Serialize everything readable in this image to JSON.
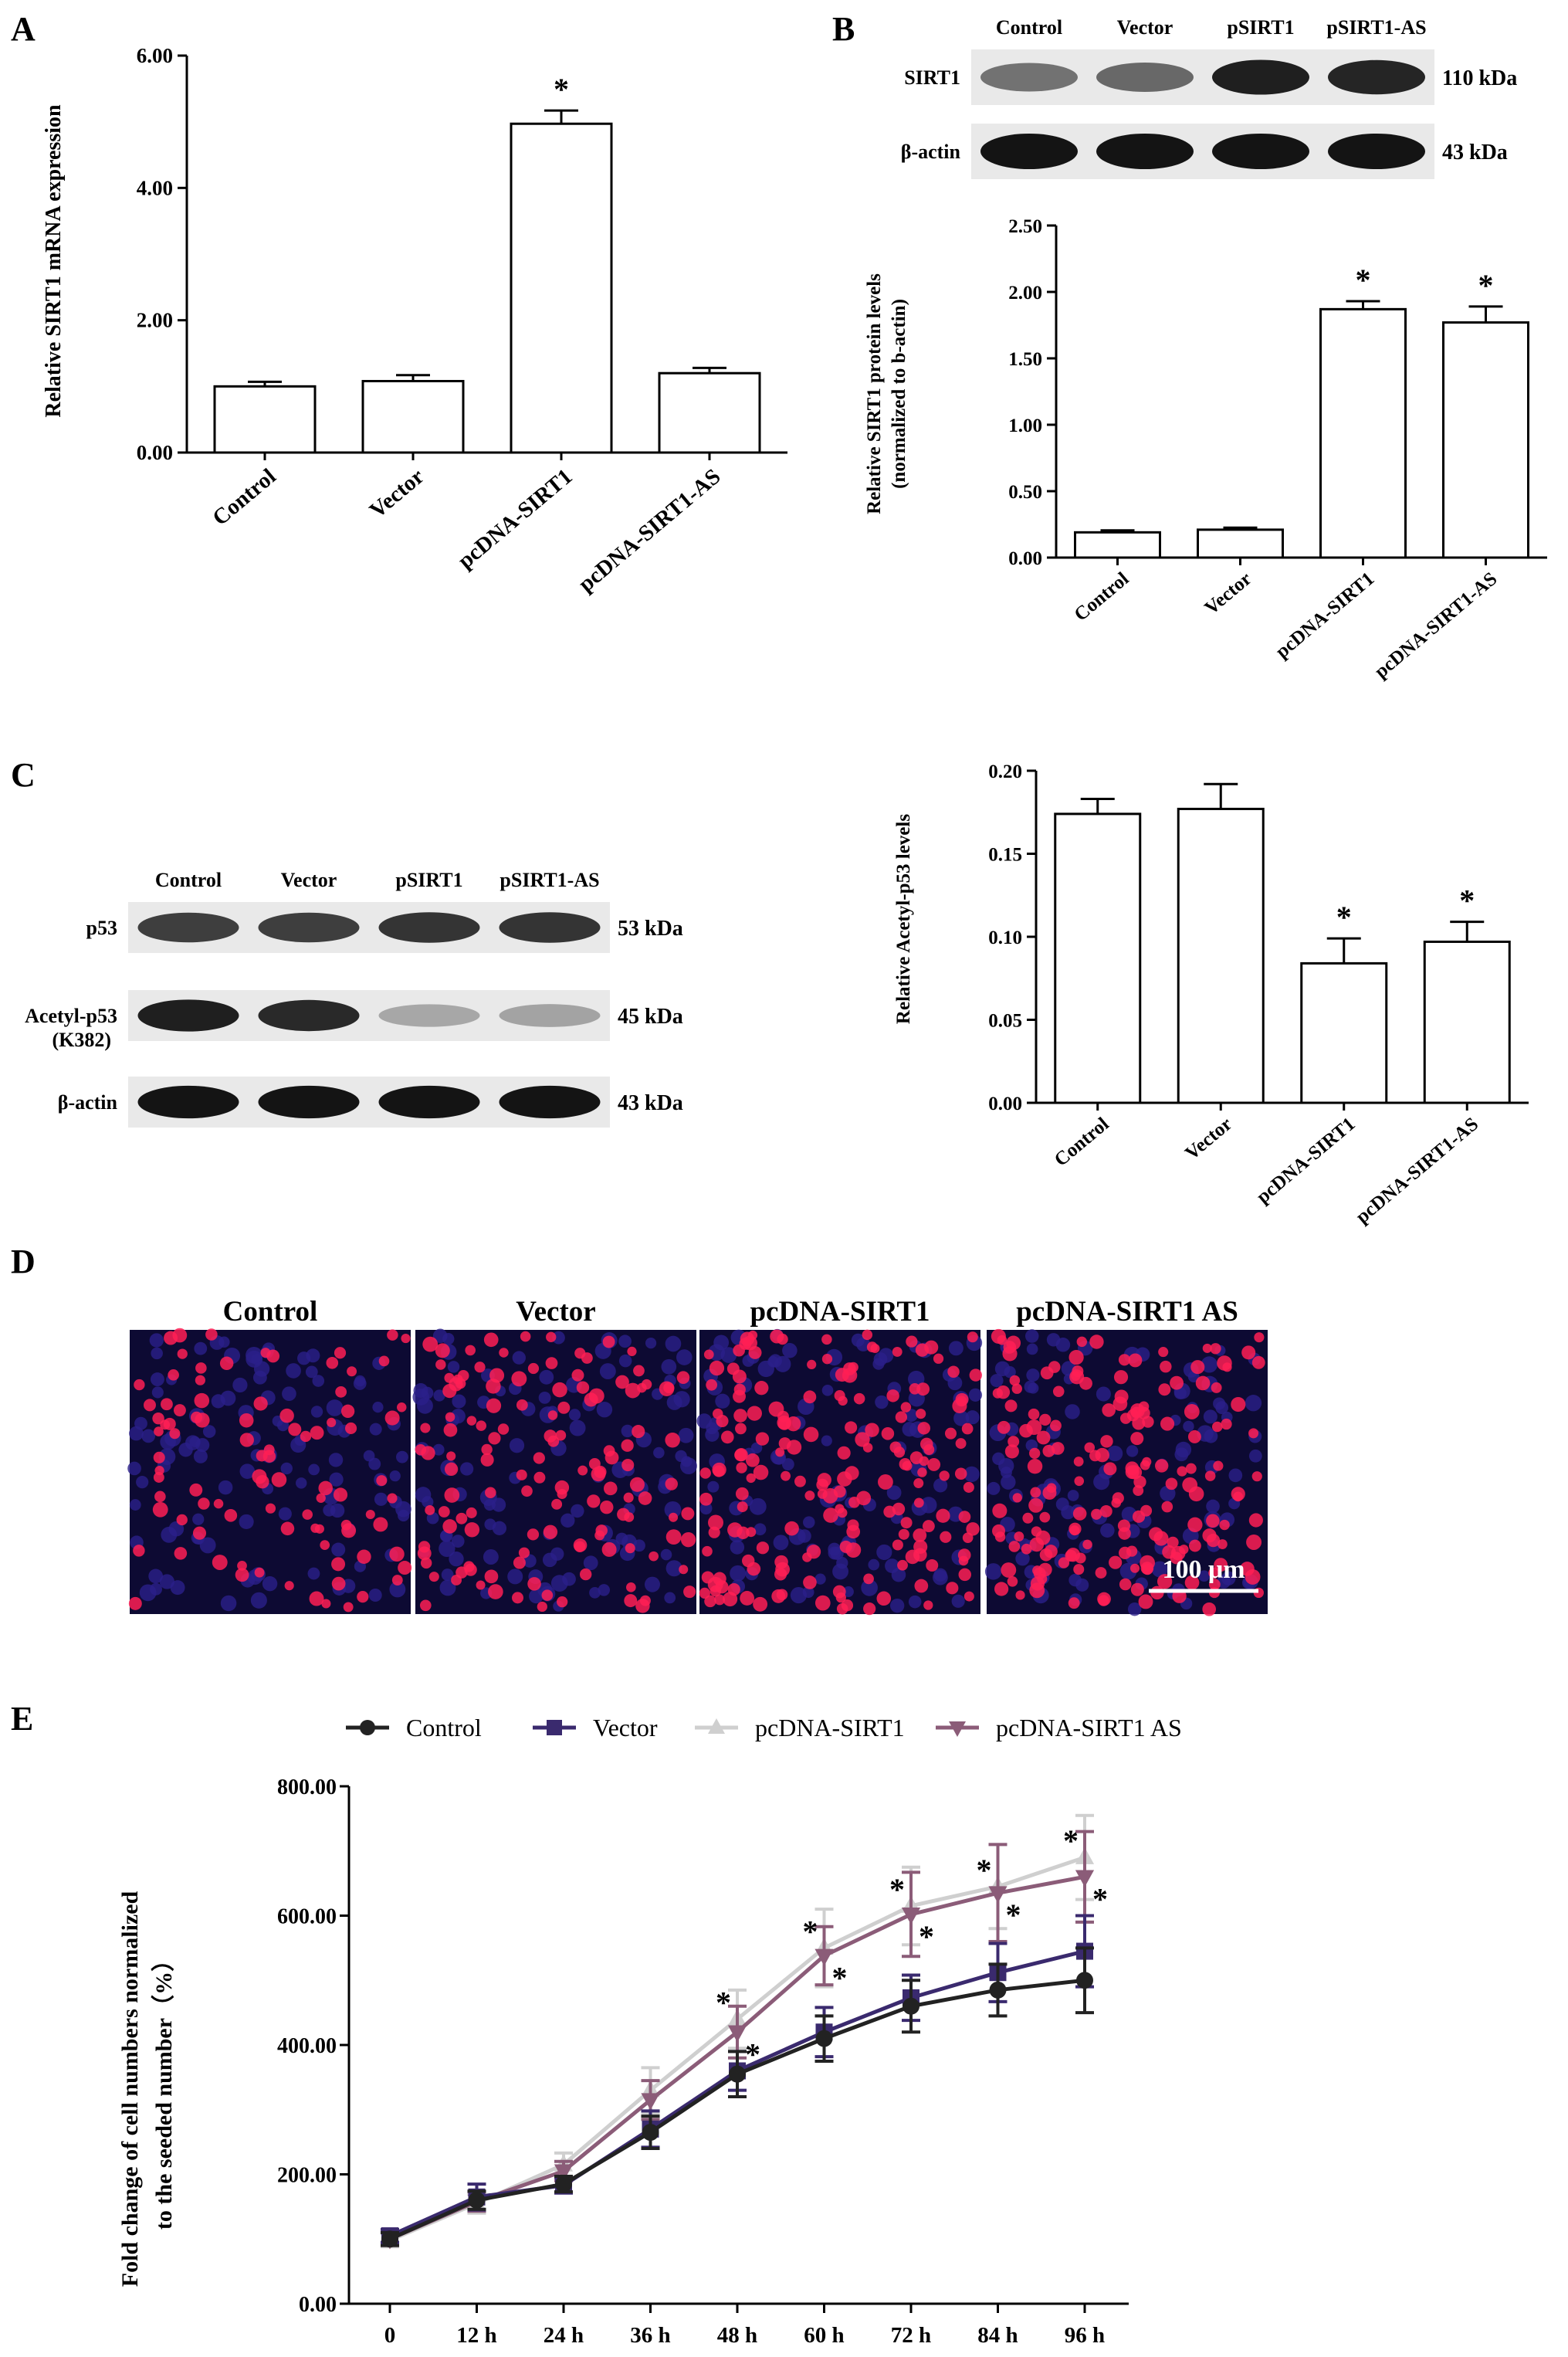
{
  "colors": {
    "control": "#222222",
    "vector": "#3a2a6e",
    "pcdna_sirt1": "#cfcfcf",
    "pcdna_sirt1_as": "#8b5c78",
    "bar_fill": "#ffffff",
    "stroke": "#000000"
  },
  "panels": {
    "A": "A",
    "B": "B",
    "C": "C",
    "D": "D",
    "E": "E"
  },
  "chart_data": [
    {
      "id": "A",
      "type": "bar",
      "categories": [
        "Control",
        "Vector",
        "pcDNA-SIRT1",
        "pcDNA-SIRT1-AS"
      ],
      "values": [
        1.0,
        1.08,
        4.97,
        1.2
      ],
      "errors": [
        0.07,
        0.09,
        0.2,
        0.08
      ],
      "significance": [
        "",
        "",
        "*",
        ""
      ],
      "ylabel": "Relative SIRT1 mRNA expression",
      "ylim": [
        0,
        6
      ],
      "yticks": [
        "0.00",
        "2.00",
        "4.00",
        "6.00"
      ],
      "ytick_values": [
        0,
        2,
        4,
        6
      ]
    },
    {
      "id": "B",
      "type": "bar",
      "categories": [
        "Control",
        "Vector",
        "pcDNA-SIRT1",
        "pcDNA-SIRT1-AS"
      ],
      "values": [
        0.19,
        0.21,
        1.87,
        1.77
      ],
      "errors": [
        0.015,
        0.015,
        0.06,
        0.12
      ],
      "significance": [
        "",
        "",
        "*",
        "*"
      ],
      "ylabel": "Relative SIRT1 protein levels",
      "ylabel2": "(normalized to b-actin)",
      "ylim": [
        0,
        2.5
      ],
      "yticks": [
        "0.00",
        "0.50",
        "1.00",
        "1.50",
        "2.00",
        "2.50"
      ],
      "ytick_values": [
        0,
        0.5,
        1,
        1.5,
        2,
        2.5
      ]
    },
    {
      "id": "C",
      "type": "bar",
      "categories": [
        "Control",
        "Vector",
        "pcDNA-SIRT1",
        "pcDNA-SIRT1-AS"
      ],
      "values": [
        0.174,
        0.177,
        0.084,
        0.097
      ],
      "errors": [
        0.009,
        0.015,
        0.015,
        0.012
      ],
      "significance": [
        "",
        "",
        "*",
        "*"
      ],
      "ylabel": "Relative Acetyl-p53 levels",
      "ylim": [
        0,
        0.2
      ],
      "yticks": [
        "0.00",
        "0.05",
        "0.10",
        "0.15",
        "0.20"
      ],
      "ytick_values": [
        0,
        0.05,
        0.1,
        0.15,
        0.2
      ]
    },
    {
      "id": "E",
      "type": "line",
      "x": [
        "0",
        "12 h",
        "24 h",
        "36 h",
        "48 h",
        "60 h",
        "72 h",
        "84 h",
        "96 h"
      ],
      "ylabel": "Fold change of cell numbers normalized",
      "ylabel2": "to the seeded number（%）",
      "ylim": [
        0,
        800
      ],
      "yticks": [
        "0.00",
        "200.00",
        "400.00",
        "600.00",
        "800.00"
      ],
      "ytick_values": [
        0,
        200,
        400,
        600,
        800
      ],
      "legend": "top",
      "series": [
        {
          "name": "Control",
          "marker": "circle",
          "colorKey": "control",
          "values": [
            100,
            160,
            185,
            265,
            355,
            410,
            460,
            485,
            500
          ],
          "errors": [
            10,
            14,
            12,
            25,
            35,
            35,
            40,
            40,
            50
          ]
        },
        {
          "name": "Vector",
          "marker": "square",
          "colorKey": "vector",
          "values": [
            105,
            165,
            183,
            270,
            360,
            420,
            473,
            512,
            545
          ],
          "errors": [
            10,
            20,
            12,
            28,
            30,
            38,
            35,
            45,
            55
          ]
        },
        {
          "name": "pcDNA-SIRT1",
          "marker": "triangle-up",
          "colorKey": "pcdna_sirt1",
          "values": [
            98,
            155,
            215,
            330,
            440,
            550,
            615,
            645,
            690
          ],
          "errors": [
            10,
            15,
            18,
            35,
            45,
            60,
            60,
            65,
            65
          ]
        },
        {
          "name": "pcDNA-SIRT1 AS",
          "marker": "triangle-down",
          "colorKey": "pcdna_sirt1_as",
          "values": [
            100,
            158,
            205,
            315,
            420,
            538,
            602,
            635,
            660
          ],
          "errors": [
            10,
            15,
            15,
            30,
            40,
            45,
            65,
            75,
            70
          ]
        }
      ],
      "significance_labels": [
        "*",
        "*",
        "*",
        "*",
        "*",
        "*",
        "*",
        "*",
        "*",
        "*"
      ]
    }
  ],
  "blot_b": {
    "lanes": [
      "Control",
      "Vector",
      "pSIRT1",
      "pSIRT1-AS"
    ],
    "rows": [
      {
        "label": "SIRT1",
        "kda": "110 kDa",
        "intensity": [
          0.55,
          0.6,
          0.95,
          0.92
        ]
      },
      {
        "label": "β-actin",
        "kda": "43 kDa",
        "intensity": [
          1,
          1,
          1,
          1
        ]
      }
    ]
  },
  "blot_c": {
    "lanes": [
      "Control",
      "Vector",
      "pSIRT1",
      "pSIRT1-AS"
    ],
    "rows": [
      {
        "label": "p53",
        "kda": "53 kDa",
        "intensity": [
          0.8,
          0.8,
          0.85,
          0.85
        ]
      },
      {
        "label": "Acetyl-p53",
        "label2": "(K382)",
        "kda": "45 kDa",
        "intensity": [
          0.95,
          0.9,
          0.3,
          0.32
        ]
      },
      {
        "label": "β-actin",
        "kda": "43 kDa",
        "intensity": [
          1,
          1,
          1,
          1
        ]
      }
    ]
  },
  "micrographs": {
    "labels": [
      "Control",
      "Vector",
      "pcDNA-SIRT1",
      "pcDNA-SIRT1  AS"
    ],
    "density": [
      0.35,
      0.5,
      0.7,
      0.7
    ],
    "scale_bar": "100 μm"
  }
}
